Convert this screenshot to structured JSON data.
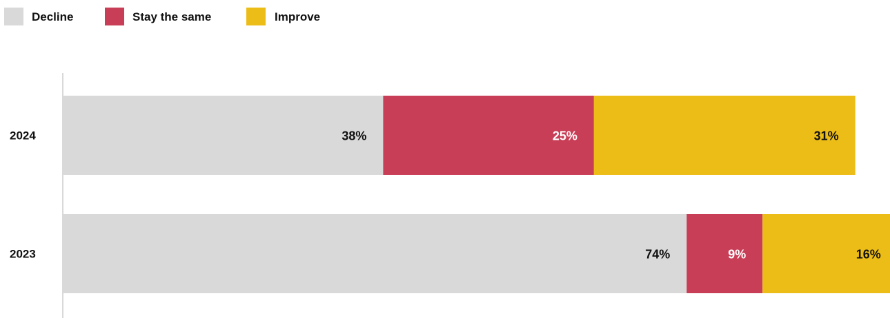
{
  "chart_data": {
    "type": "bar",
    "orientation": "horizontal",
    "stacked": true,
    "categories": [
      "2024",
      "2023"
    ],
    "series": [
      {
        "name": "Decline",
        "values": [
          38,
          74
        ],
        "labels": [
          "38%",
          "74%"
        ],
        "color": "#d9d9d9",
        "label_color": "#111111"
      },
      {
        "name": "Stay the same",
        "values": [
          25,
          9
        ],
        "labels": [
          "25%",
          "9%"
        ],
        "color": "#c83e57",
        "label_color": "#ffffff"
      },
      {
        "name": "Improve",
        "values": [
          31,
          16
        ],
        "labels": [
          "31%",
          "16%"
        ],
        "color": "#edbd17",
        "label_color": "#111111"
      }
    ],
    "xlim": [
      0,
      100
    ],
    "legend_position": "top-left",
    "grid": false,
    "title": "",
    "xlabel": "",
    "ylabel": ""
  }
}
